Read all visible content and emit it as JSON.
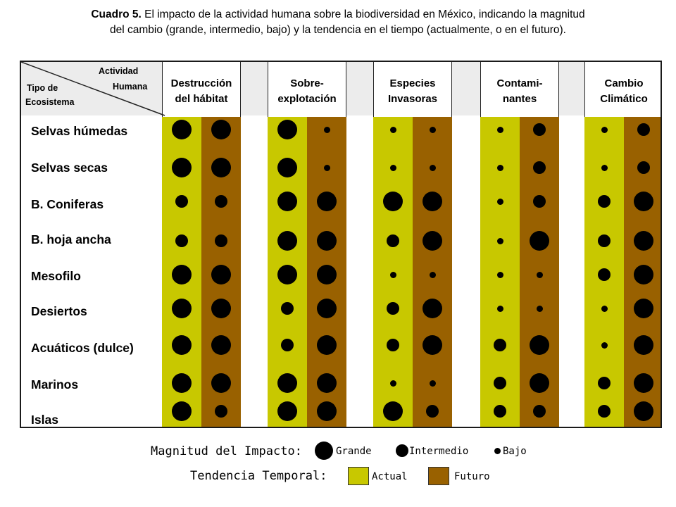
{
  "caption": {
    "label": "Cuadro 5.",
    "text_line1": " El impacto de la actividad humana sobre la biodiversidad en México, indicando la magnitud",
    "text_line2": "del cambio (grande, intermedio, bajo) y la tendencia en el tiempo (actualmente, o en el futuro)."
  },
  "table": {
    "corner_top": "Actividad",
    "corner_top2": "Humana",
    "corner_bottom": "Tipo de",
    "corner_bottom2": "Ecosistema",
    "activities": [
      {
        "line1": "Destrucción",
        "line2": "del hábitat"
      },
      {
        "line1": "Sobre-",
        "line2": "explotación"
      },
      {
        "line1": "Especies",
        "line2": "Invasoras"
      },
      {
        "line1": "Contami-",
        "line2": "nantes"
      },
      {
        "line1": "Cambio",
        "line2": "Climático"
      }
    ],
    "ecosystems": [
      "Selvas húmedas",
      "Selvas secas",
      "B. Coniferas",
      "B. hoja ancha",
      "Mesofilo",
      "Desiertos",
      "Acuáticos (dulce)",
      "Marinos",
      "Islas"
    ],
    "magnitudes": [
      [
        [
          "G",
          "G"
        ],
        [
          "G",
          "B"
        ],
        [
          "B",
          "B"
        ],
        [
          "B",
          "I"
        ],
        [
          "B",
          "I"
        ]
      ],
      [
        [
          "G",
          "G"
        ],
        [
          "G",
          "B"
        ],
        [
          "B",
          "B"
        ],
        [
          "B",
          "I"
        ],
        [
          "B",
          "I"
        ]
      ],
      [
        [
          "I",
          "I"
        ],
        [
          "G",
          "G"
        ],
        [
          "G",
          "G"
        ],
        [
          "B",
          "I"
        ],
        [
          "I",
          "G"
        ]
      ],
      [
        [
          "I",
          "I"
        ],
        [
          "G",
          "G"
        ],
        [
          "I",
          "G"
        ],
        [
          "B",
          "G"
        ],
        [
          "I",
          "G"
        ]
      ],
      [
        [
          "G",
          "G"
        ],
        [
          "G",
          "G"
        ],
        [
          "B",
          "B"
        ],
        [
          "B",
          "B"
        ],
        [
          "I",
          "G"
        ]
      ],
      [
        [
          "G",
          "G"
        ],
        [
          "I",
          "G"
        ],
        [
          "I",
          "G"
        ],
        [
          "B",
          "B"
        ],
        [
          "B",
          "G"
        ]
      ],
      [
        [
          "G",
          "G"
        ],
        [
          "I",
          "G"
        ],
        [
          "I",
          "G"
        ],
        [
          "I",
          "G"
        ],
        [
          "B",
          "G"
        ]
      ],
      [
        [
          "G",
          "G"
        ],
        [
          "G",
          "G"
        ],
        [
          "B",
          "B"
        ],
        [
          "I",
          "G"
        ],
        [
          "I",
          "G"
        ]
      ],
      [
        [
          "G",
          "I"
        ],
        [
          "G",
          "G"
        ],
        [
          "G",
          "I"
        ],
        [
          "I",
          "I"
        ],
        [
          "I",
          "G"
        ]
      ]
    ]
  },
  "legend": {
    "magnitude_title": "Magnitud del Impacto:",
    "grande": "Grande",
    "intermedio": "Intermedio",
    "bajo": "Bajo",
    "trend_title": "Tendencia Temporal:",
    "actual": "Actual",
    "futuro": "Futuro"
  },
  "colors": {
    "actual": "#c8c800",
    "futuro": "#996100"
  }
}
